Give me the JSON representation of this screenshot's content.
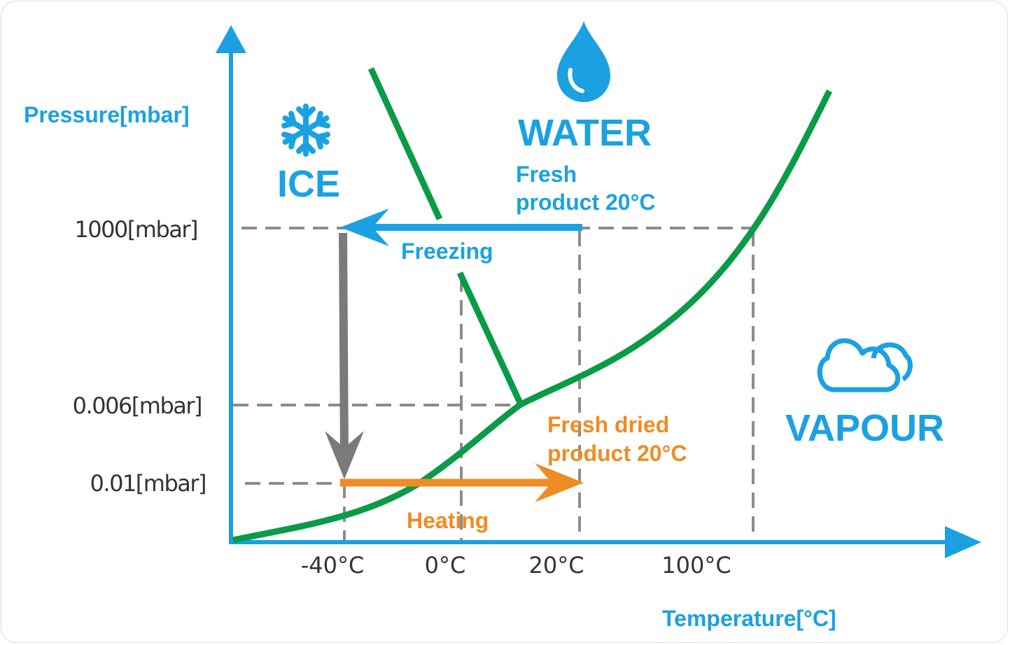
{
  "axes": {
    "y_label": "Pressure[mbar]",
    "x_label": "Temperature[°C]",
    "y_ticks": [
      "1000[mbar]",
      "0.006[mbar]",
      "0.01[mbar]"
    ],
    "x_ticks": [
      "-40°C",
      "0°C",
      "20°C",
      "100°C"
    ]
  },
  "regions": {
    "ice": "ICE",
    "water": "WATER",
    "vapour": "VAPOUR"
  },
  "annotations": {
    "fresh_product_line1": "Fresh",
    "fresh_product_line2": "product 20°C",
    "freezing": "Freezing",
    "fresh_dried_line1": "Fresh dried",
    "fresh_dried_line2": "product 20°C",
    "heating": "Heating"
  },
  "icons": {
    "ice": "snowflake-icon",
    "water": "water-drop-icon",
    "vapour": "cloud-icon"
  },
  "colors": {
    "axis_blue": "#1ba1e2",
    "curve_green": "#0a9b48",
    "dashed_gray": "#8c8c8c",
    "arrow_gray": "#7a7a7a",
    "arrow_orange": "#ef8c23"
  }
}
